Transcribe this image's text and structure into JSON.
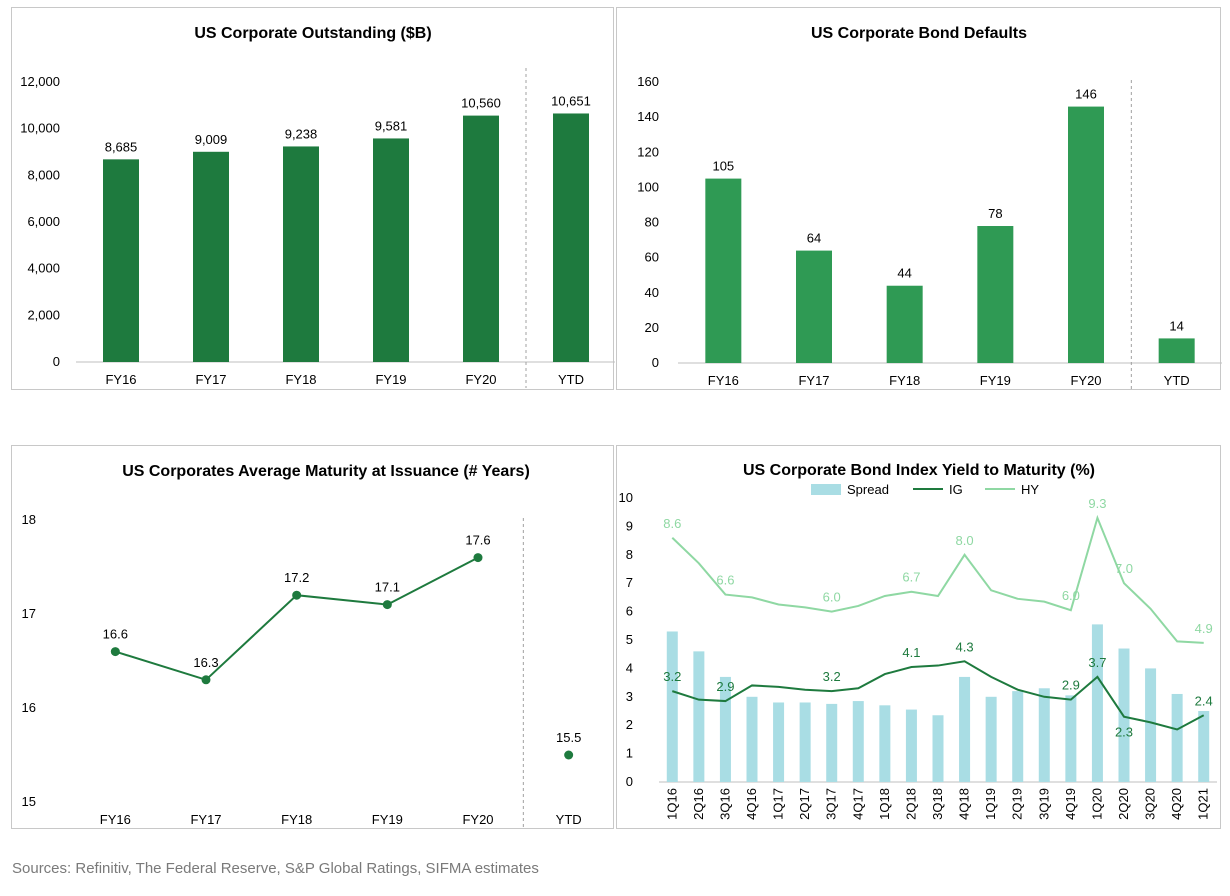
{
  "footer": {
    "sources": "Sources: Refinitiv, The Federal Reserve, S&P Global Ratings, SIFMA estimates"
  },
  "colors": {
    "dark_green": "#1e7a3e",
    "mid_green": "#2f9a54",
    "light_green": "#8fd8a3",
    "spread_blue": "#a9dde4",
    "divider": "#a0a0a0"
  },
  "chart_data": [
    {
      "type": "bar",
      "title": "US Corporate Outstanding ($B)",
      "categories": [
        "FY16",
        "FY17",
        "FY18",
        "FY19",
        "FY20",
        "YTD"
      ],
      "values": [
        8685,
        9009,
        9238,
        9581,
        10560,
        10651
      ],
      "value_labels": [
        "8,685",
        "9,009",
        "9,238",
        "9,581",
        "10,560",
        "10,651"
      ],
      "ylim": [
        0,
        12000
      ],
      "yticks": [
        0,
        2000,
        4000,
        6000,
        8000,
        10000,
        12000
      ],
      "ytick_labels": [
        "0",
        "2,000",
        "4,000",
        "6,000",
        "8,000",
        "10,000",
        "12,000"
      ],
      "grid": false,
      "divider_before": "YTD",
      "color": "#1e7a3e"
    },
    {
      "type": "bar",
      "title": "US Corporate Bond Defaults",
      "categories": [
        "FY16",
        "FY17",
        "FY18",
        "FY19",
        "FY20",
        "YTD"
      ],
      "values": [
        105,
        64,
        44,
        78,
        146,
        14
      ],
      "value_labels": [
        "105",
        "64",
        "44",
        "78",
        "146",
        "14"
      ],
      "ylim": [
        0,
        160
      ],
      "yticks": [
        0,
        20,
        40,
        60,
        80,
        100,
        120,
        140,
        160
      ],
      "ytick_labels": [
        "0",
        "20",
        "40",
        "60",
        "80",
        "100",
        "120",
        "140",
        "160"
      ],
      "grid": false,
      "divider_before": "YTD",
      "color": "#2f9a54"
    },
    {
      "type": "line",
      "title": "US Corporates Average Maturity at Issuance (# Years)",
      "categories": [
        "FY16",
        "FY17",
        "FY18",
        "FY19",
        "FY20",
        "YTD"
      ],
      "values": [
        16.6,
        16.3,
        17.2,
        17.1,
        17.6,
        15.5
      ],
      "value_labels": [
        "16.6",
        "16.3",
        "17.2",
        "17.1",
        "17.6",
        "15.5"
      ],
      "connected_until": "FY20",
      "ylim": [
        15,
        18
      ],
      "yticks": [
        15,
        16,
        17,
        18
      ],
      "ytick_labels": [
        "15",
        "16",
        "17",
        "18"
      ],
      "grid": false,
      "divider_before": "YTD",
      "color": "#1e7a3e"
    },
    {
      "type": "bar",
      "title": "US Corporate Bond Index Yield to Maturity (%)",
      "categories": [
        "1Q16",
        "2Q16",
        "3Q16",
        "4Q16",
        "1Q17",
        "2Q17",
        "3Q17",
        "4Q17",
        "1Q18",
        "2Q18",
        "3Q18",
        "4Q18",
        "1Q19",
        "2Q19",
        "3Q19",
        "4Q19",
        "1Q20",
        "2Q20",
        "3Q20",
        "4Q20",
        "1Q21"
      ],
      "legend": {
        "placement": "top",
        "entries": [
          "Spread",
          "IG",
          "HY"
        ]
      },
      "series": [
        {
          "name": "Spread",
          "type": "bar",
          "color": "#a9dde4",
          "values": [
            5.3,
            4.6,
            3.7,
            3.0,
            2.8,
            2.8,
            2.75,
            2.85,
            2.7,
            2.55,
            2.35,
            3.7,
            3.0,
            3.2,
            3.3,
            3.05,
            5.55,
            4.7,
            4.0,
            3.1,
            2.5
          ]
        },
        {
          "name": "IG",
          "type": "line",
          "color": "#1e7a3e",
          "values": [
            3.2,
            2.9,
            2.85,
            3.4,
            3.35,
            3.25,
            3.2,
            3.3,
            3.8,
            4.05,
            4.1,
            4.25,
            3.7,
            3.25,
            3.0,
            2.9,
            3.7,
            2.3,
            2.1,
            1.85,
            2.35
          ]
        },
        {
          "name": "HY",
          "type": "line",
          "color": "#8fd8a3",
          "values": [
            8.6,
            7.7,
            6.6,
            6.5,
            6.25,
            6.15,
            6.0,
            6.2,
            6.55,
            6.7,
            6.55,
            8.0,
            6.75,
            6.45,
            6.35,
            6.05,
            9.3,
            7.0,
            6.1,
            4.95,
            4.9
          ]
        }
      ],
      "annotations": [
        {
          "series": "HY",
          "category": "1Q16",
          "text": "8.6"
        },
        {
          "series": "HY",
          "category": "3Q16",
          "text": "6.6"
        },
        {
          "series": "HY",
          "category": "3Q17",
          "text": "6.0"
        },
        {
          "series": "HY",
          "category": "2Q18",
          "text": "6.7"
        },
        {
          "series": "HY",
          "category": "4Q18",
          "text": "8.0"
        },
        {
          "series": "HY",
          "category": "4Q19",
          "text": "6.0"
        },
        {
          "series": "HY",
          "category": "1Q20",
          "text": "9.3"
        },
        {
          "series": "HY",
          "category": "2Q20",
          "text": "7.0"
        },
        {
          "series": "HY",
          "category": "1Q21",
          "text": "4.9"
        },
        {
          "series": "IG",
          "category": "1Q16",
          "text": "3.2"
        },
        {
          "series": "IG",
          "category": "3Q16",
          "text": "2.9"
        },
        {
          "series": "IG",
          "category": "3Q17",
          "text": "3.2"
        },
        {
          "series": "IG",
          "category": "2Q18",
          "text": "4.1"
        },
        {
          "series": "IG",
          "category": "4Q18",
          "text": "4.3"
        },
        {
          "series": "IG",
          "category": "4Q19",
          "text": "2.9"
        },
        {
          "series": "IG",
          "category": "1Q20",
          "text": "3.7"
        },
        {
          "series": "IG",
          "category": "2Q20",
          "text": "2.3"
        },
        {
          "series": "IG",
          "category": "1Q21",
          "text": "2.4"
        }
      ],
      "ylim": [
        0,
        10
      ],
      "yticks": [
        0,
        1,
        2,
        3,
        4,
        5,
        6,
        7,
        8,
        9,
        10
      ],
      "ytick_labels": [
        "0",
        "1",
        "2",
        "3",
        "4",
        "5",
        "6",
        "7",
        "8",
        "9",
        "10"
      ],
      "grid": false
    }
  ]
}
